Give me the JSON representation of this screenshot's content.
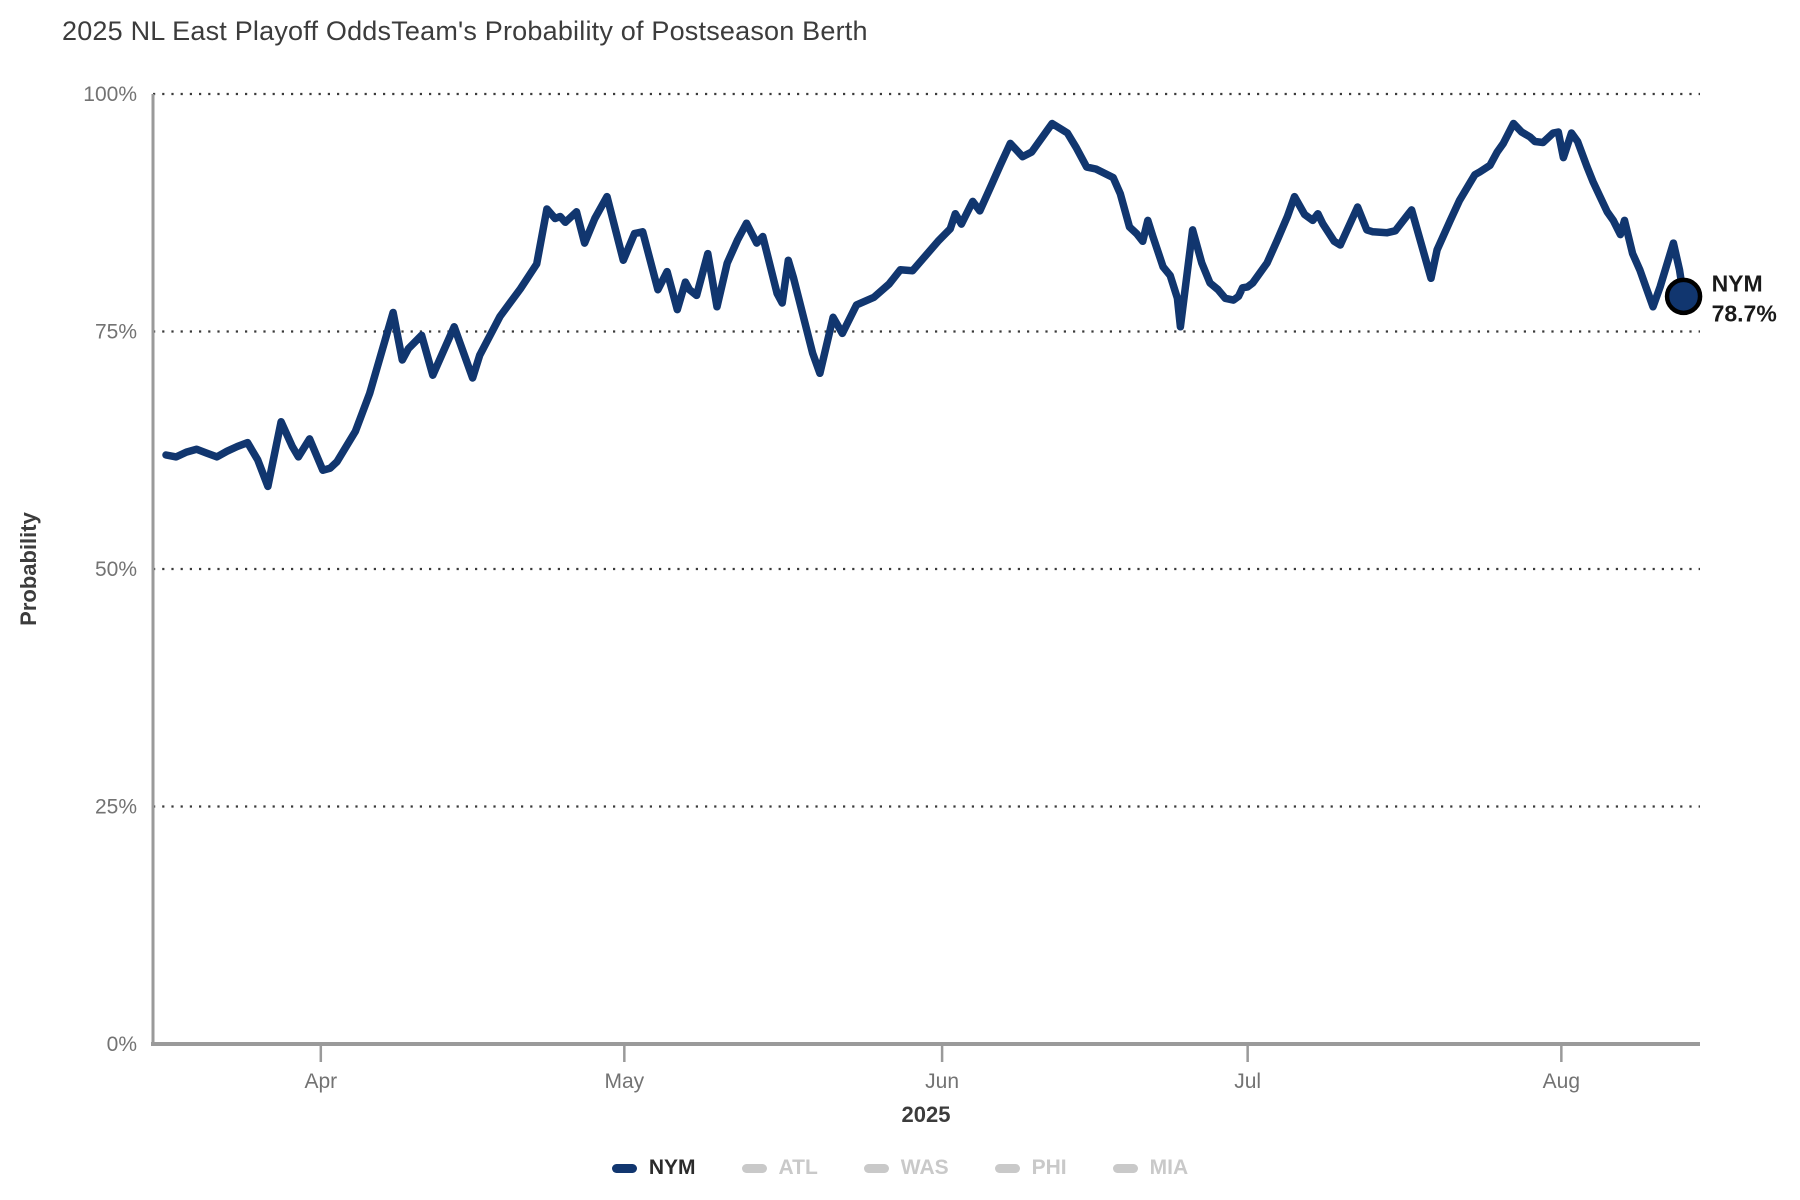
{
  "title": {
    "main": "2025 NL East Playoff Odds",
    "sub": "Team's Probability of Postseason Berth"
  },
  "colors": {
    "line": "#11366f",
    "inactive": "#c9c9c9",
    "grid": "#3a3a3a",
    "axis": "#9a9a9a",
    "tick_text": "#737373",
    "heading_text": "#3c3c3c",
    "annotation_text": "#1a1a1a",
    "marker_ring": "#000000",
    "active_legend_text": "#2b2b2b"
  },
  "annotation": {
    "team": "NYM",
    "value_label": "78.7%"
  },
  "chart_data": {
    "type": "line",
    "title": "2025 NL East Playoff Odds",
    "subtitle": "Team's Probability of Postseason Berth",
    "ylabel": "Probability",
    "xlabel": "2025",
    "ylim": [
      0,
      100
    ],
    "grid": "dotted-horizontal",
    "legend_position": "bottom",
    "y_ticks": [
      {
        "value": 0,
        "label": "0%"
      },
      {
        "value": 25,
        "label": "25%"
      },
      {
        "value": 50,
        "label": "50%"
      },
      {
        "value": 75,
        "label": "75%"
      },
      {
        "value": 100,
        "label": "100%"
      }
    ],
    "x_ticks": [
      {
        "day": 15.2,
        "label": "Apr"
      },
      {
        "day": 45.0,
        "label": "May"
      },
      {
        "day": 76.2,
        "label": "Jun"
      },
      {
        "day": 106.2,
        "label": "Jul"
      },
      {
        "day": 137.0,
        "label": "Aug"
      }
    ],
    "x_range_days": [
      0,
      149
    ],
    "series": [
      {
        "name": "NYM",
        "active": true,
        "end_value": 78.7,
        "points": [
          [
            0,
            62.0
          ],
          [
            1,
            61.8
          ],
          [
            2,
            62.3
          ],
          [
            3,
            62.6
          ],
          [
            4,
            62.2
          ],
          [
            5,
            61.8
          ],
          [
            6,
            62.4
          ],
          [
            7,
            62.9
          ],
          [
            8,
            63.3
          ],
          [
            9,
            61.5
          ],
          [
            10,
            58.7
          ],
          [
            11.3,
            65.5
          ],
          [
            12.4,
            62.9
          ],
          [
            13,
            61.8
          ],
          [
            14.1,
            63.7
          ],
          [
            15.4,
            60.4
          ],
          [
            16.1,
            60.6
          ],
          [
            16.8,
            61.3
          ],
          [
            18.6,
            64.5
          ],
          [
            20,
            68.5
          ],
          [
            22.3,
            77.0
          ],
          [
            23.2,
            72.0
          ],
          [
            23.8,
            73.2
          ],
          [
            25.1,
            74.6
          ],
          [
            26.2,
            70.4
          ],
          [
            28.3,
            75.5
          ],
          [
            30.1,
            70.1
          ],
          [
            30.8,
            72.5
          ],
          [
            32.8,
            76.6
          ],
          [
            34.8,
            79.5
          ],
          [
            36.4,
            82.1
          ],
          [
            37.4,
            87.9
          ],
          [
            38.2,
            86.9
          ],
          [
            38.7,
            87.1
          ],
          [
            39.2,
            86.5
          ],
          [
            40.3,
            87.6
          ],
          [
            41.1,
            84.3
          ],
          [
            42.1,
            86.9
          ],
          [
            43.3,
            89.2
          ],
          [
            44.9,
            82.5
          ],
          [
            46,
            85.3
          ],
          [
            46.8,
            85.5
          ],
          [
            48.3,
            79.4
          ],
          [
            49.2,
            81.3
          ],
          [
            50.2,
            77.3
          ],
          [
            51,
            80.2
          ],
          [
            51.4,
            79.4
          ],
          [
            52.1,
            78.8
          ],
          [
            53.2,
            83.2
          ],
          [
            54.1,
            77.6
          ],
          [
            55.1,
            82.2
          ],
          [
            56.1,
            84.6
          ],
          [
            57,
            86.4
          ],
          [
            58,
            84.3
          ],
          [
            58.6,
            85.0
          ],
          [
            60,
            79.0
          ],
          [
            60.5,
            78.0
          ],
          [
            61.1,
            82.5
          ],
          [
            61.6,
            80.7
          ],
          [
            63.5,
            72.7
          ],
          [
            64.2,
            70.6
          ],
          [
            65.5,
            76.5
          ],
          [
            66.4,
            74.8
          ],
          [
            67.8,
            77.8
          ],
          [
            69.5,
            78.6
          ],
          [
            71,
            80.0
          ],
          [
            72.1,
            81.5
          ],
          [
            73.3,
            81.4
          ],
          [
            75.8,
            84.5
          ],
          [
            77,
            85.8
          ],
          [
            77.5,
            87.4
          ],
          [
            78.1,
            86.3
          ],
          [
            79.2,
            88.7
          ],
          [
            79.9,
            87.7
          ],
          [
            81,
            90.3
          ],
          [
            81.9,
            92.5
          ],
          [
            82.9,
            94.8
          ],
          [
            84.1,
            93.4
          ],
          [
            85,
            93.9
          ],
          [
            87,
            96.9
          ],
          [
            88.5,
            95.9
          ],
          [
            89.4,
            94.3
          ],
          [
            90.4,
            92.3
          ],
          [
            91.3,
            92.1
          ],
          [
            93,
            91.2
          ],
          [
            93.7,
            89.5
          ],
          [
            94.6,
            86.0
          ],
          [
            95.3,
            85.3
          ],
          [
            95.9,
            84.5
          ],
          [
            96.4,
            86.7
          ],
          [
            96.9,
            85.0
          ],
          [
            97.9,
            81.8
          ],
          [
            98.6,
            80.9
          ],
          [
            99.3,
            78.5
          ],
          [
            99.6,
            75.5
          ],
          [
            100.8,
            85.7
          ],
          [
            101.7,
            82.2
          ],
          [
            102.5,
            80.1
          ],
          [
            103.3,
            79.4
          ],
          [
            104,
            78.5
          ],
          [
            104.8,
            78.3
          ],
          [
            105.3,
            78.7
          ],
          [
            105.7,
            79.6
          ],
          [
            106.2,
            79.7
          ],
          [
            106.7,
            80.1
          ],
          [
            108.1,
            82.2
          ],
          [
            109.1,
            84.6
          ],
          [
            110.1,
            87.1
          ],
          [
            110.8,
            89.2
          ],
          [
            111.8,
            87.3
          ],
          [
            112.6,
            86.7
          ],
          [
            113.1,
            87.4
          ],
          [
            113.6,
            86.3
          ],
          [
            114.7,
            84.5
          ],
          [
            115.3,
            84.1
          ],
          [
            117,
            88.1
          ],
          [
            117.9,
            85.7
          ],
          [
            118.5,
            85.5
          ],
          [
            119.9,
            85.4
          ],
          [
            120.7,
            85.6
          ],
          [
            122,
            87.4
          ],
          [
            122.3,
            87.8
          ],
          [
            124.2,
            80.6
          ],
          [
            124.8,
            83.6
          ],
          [
            126.1,
            86.7
          ],
          [
            127,
            88.8
          ],
          [
            128,
            90.6
          ],
          [
            128.5,
            91.5
          ],
          [
            129,
            91.8
          ],
          [
            130,
            92.5
          ],
          [
            130.7,
            93.9
          ],
          [
            131.3,
            94.8
          ],
          [
            132.3,
            96.9
          ],
          [
            133.1,
            96.0
          ],
          [
            133.9,
            95.5
          ],
          [
            134.4,
            95.0
          ],
          [
            135.2,
            94.9
          ],
          [
            136.2,
            95.9
          ],
          [
            136.7,
            96.0
          ],
          [
            137.2,
            93.3
          ],
          [
            138,
            95.9
          ],
          [
            138.6,
            95.0
          ],
          [
            139.5,
            92.4
          ],
          [
            140.1,
            90.8
          ],
          [
            140.8,
            89.2
          ],
          [
            141.5,
            87.6
          ],
          [
            142.1,
            86.7
          ],
          [
            142.8,
            85.2
          ],
          [
            143.2,
            86.7
          ],
          [
            144,
            83.2
          ],
          [
            144.7,
            81.5
          ],
          [
            145.4,
            79.4
          ],
          [
            146,
            77.6
          ],
          [
            146.7,
            79.7
          ],
          [
            148,
            84.3
          ],
          [
            148.6,
            81.5
          ],
          [
            149,
            78.7
          ]
        ]
      },
      {
        "name": "ATL",
        "active": false
      },
      {
        "name": "WAS",
        "active": false
      },
      {
        "name": "PHI",
        "active": false
      },
      {
        "name": "MIA",
        "active": false
      }
    ]
  }
}
